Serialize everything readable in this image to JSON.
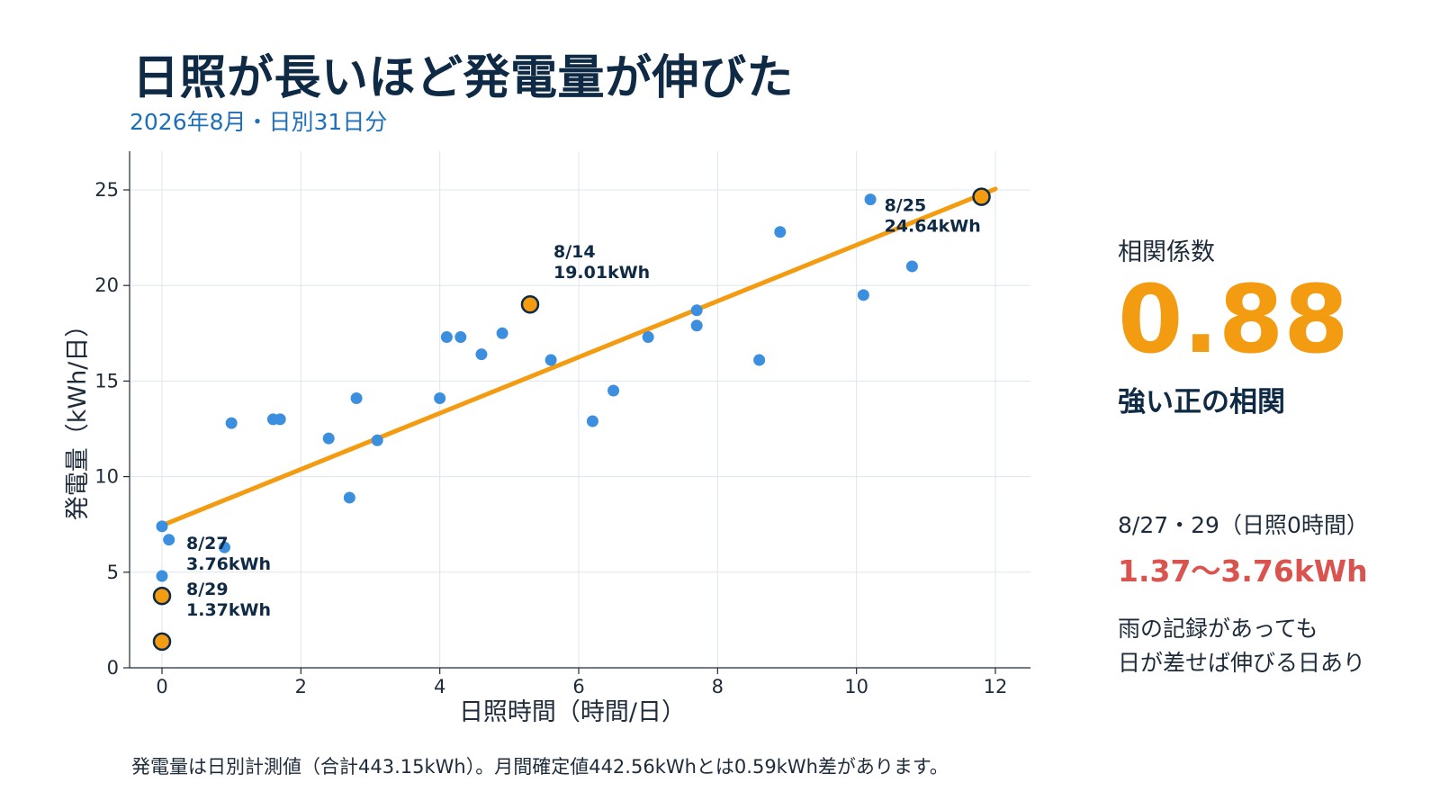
{
  "title": "日照が長いほど発電量が伸びた",
  "subtitle": "2026年8月・日別31日分",
  "footnote": "発電量は日別計測値（合計443.15kWh）。月間確定値442.56kWhとは0.59kWh差があります。",
  "side_panel": {
    "correlation_label": "相関係数",
    "correlation_value": "0.88",
    "correlation_desc": "強い正の相関",
    "zero_sun_label": "8/27・29（日照0時間）",
    "zero_sun_range": "1.37〜3.76kWh",
    "note_lines": [
      "雨の記録があっても",
      "日が差せば伸びる日あり"
    ]
  },
  "colors": {
    "title": "#0f2a44",
    "subtitle": "#1f6fb8",
    "point": "#3b8fde",
    "highlight_fill": "#f39c12",
    "highlight_stroke": "#0f2a44",
    "trend": "#f39c12",
    "grid": "#dfe5ec",
    "accent_red": "#d9534f"
  },
  "chart_data": {
    "type": "scatter",
    "xlabel": "日照時間（時間/日）",
    "ylabel": "発電量（kWh/日）",
    "xlim": [
      -0.5,
      12.5
    ],
    "ylim": [
      0,
      27
    ],
    "xticks": [
      0,
      2,
      4,
      6,
      8,
      10,
      12
    ],
    "yticks": [
      0,
      5,
      10,
      15,
      20,
      25
    ],
    "grid": true,
    "points": [
      {
        "x": 0,
        "y": 7.4
      },
      {
        "x": 0.1,
        "y": 6.7
      },
      {
        "x": 0.9,
        "y": 6.3
      },
      {
        "x": 0,
        "y": 4.8
      },
      {
        "x": 1.0,
        "y": 12.8
      },
      {
        "x": 1.6,
        "y": 13.0
      },
      {
        "x": 1.7,
        "y": 13.0
      },
      {
        "x": 2.4,
        "y": 12.0
      },
      {
        "x": 2.7,
        "y": 8.9
      },
      {
        "x": 2.8,
        "y": 14.1
      },
      {
        "x": 3.1,
        "y": 11.9
      },
      {
        "x": 4.0,
        "y": 14.1
      },
      {
        "x": 4.1,
        "y": 17.3
      },
      {
        "x": 4.3,
        "y": 17.3
      },
      {
        "x": 4.6,
        "y": 16.4
      },
      {
        "x": 4.9,
        "y": 17.5
      },
      {
        "x": 5.6,
        "y": 16.1
      },
      {
        "x": 6.2,
        "y": 12.9
      },
      {
        "x": 6.5,
        "y": 14.5
      },
      {
        "x": 7.0,
        "y": 17.3
      },
      {
        "x": 7.7,
        "y": 18.7
      },
      {
        "x": 7.7,
        "y": 17.9
      },
      {
        "x": 8.6,
        "y": 16.1
      },
      {
        "x": 8.9,
        "y": 22.8
      },
      {
        "x": 10.1,
        "y": 19.5
      },
      {
        "x": 10.2,
        "y": 24.5
      },
      {
        "x": 10.8,
        "y": 21.0
      }
    ],
    "highlights": [
      {
        "x": 0,
        "y": 3.76,
        "label_date": "8/27",
        "label_value": "3.76kWh"
      },
      {
        "x": 0,
        "y": 1.37,
        "label_date": "8/29",
        "label_value": "1.37kWh"
      },
      {
        "x": 5.3,
        "y": 19.01,
        "label_date": "8/14",
        "label_value": "19.01kWh"
      },
      {
        "x": 11.8,
        "y": 24.64,
        "label_date": "8/25",
        "label_value": "24.64kWh"
      }
    ],
    "trendline": {
      "x0": 0,
      "y0": 7.45,
      "x1": 12,
      "y1": 25.05
    }
  }
}
